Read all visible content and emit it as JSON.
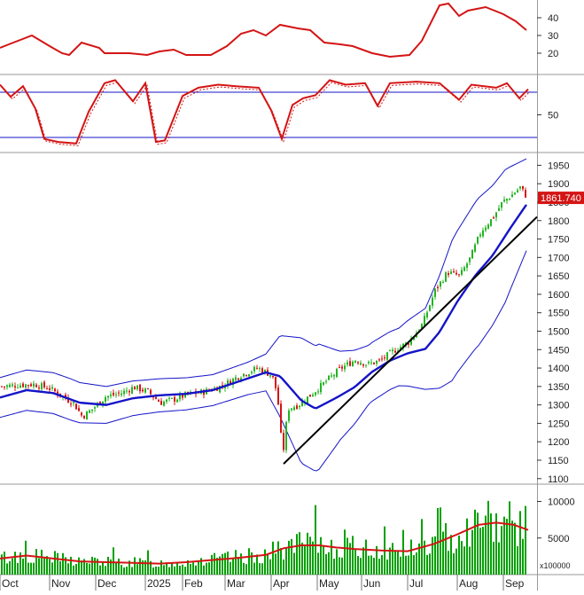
{
  "last_price_label": "1861.740",
  "volume_unit": "x100000",
  "colors": {
    "up": "#22b422",
    "down": "#d41414",
    "indicator": "#d41414",
    "ma": "#1414c8",
    "band": "#1414c8",
    "trend": "#000000",
    "volume_bar": "#00a000",
    "volume_ma": "#d41414",
    "price_tag_bg": "#d41414",
    "price_tag_text": "#ffffff"
  },
  "chart_data": [
    {
      "type": "line",
      "panel": "adx",
      "y_ticks": [
        20,
        30,
        40
      ],
      "ylim": [
        8,
        50
      ],
      "series": [
        {
          "values": [
            [
              0,
              23
            ],
            [
              10,
              25
            ],
            [
              36,
              30
            ],
            [
              56,
              24
            ],
            [
              70,
              20
            ],
            [
              78,
              19
            ],
            [
              92,
              26
            ],
            [
              112,
              23
            ],
            [
              118,
              20
            ],
            [
              146,
              20
            ],
            [
              166,
              19
            ],
            [
              180,
              21
            ],
            [
              196,
              22
            ],
            [
              210,
              19
            ],
            [
              238,
              19
            ],
            [
              256,
              24
            ],
            [
              272,
              31
            ],
            [
              286,
              33
            ],
            [
              300,
              30
            ],
            [
              316,
              36
            ],
            [
              336,
              34
            ],
            [
              350,
              33
            ],
            [
              366,
              26
            ],
            [
              384,
              25
            ],
            [
              398,
              24
            ],
            [
              420,
              20
            ],
            [
              440,
              18
            ],
            [
              462,
              19
            ],
            [
              476,
              27
            ],
            [
              496,
              47
            ],
            [
              506,
              48
            ],
            [
              518,
              41
            ],
            [
              528,
              44
            ],
            [
              548,
              46
            ],
            [
              568,
              42
            ],
            [
              582,
              38
            ],
            [
              594,
              33
            ]
          ]
        }
      ]
    },
    {
      "type": "line",
      "panel": "stochastic",
      "y_ticks": [
        50
      ],
      "ylim": [
        0,
        100
      ],
      "reference_lines": [
        20,
        80
      ],
      "series": [
        {
          "values": [
            [
              0,
              90
            ],
            [
              12,
              74
            ],
            [
              26,
              88
            ],
            [
              40,
              58
            ],
            [
              50,
              18
            ],
            [
              66,
              14
            ],
            [
              86,
              12
            ],
            [
              100,
              54
            ],
            [
              118,
              92
            ],
            [
              130,
              96
            ],
            [
              150,
              68
            ],
            [
              164,
              92
            ],
            [
              176,
              14
            ],
            [
              186,
              16
            ],
            [
              206,
              75
            ],
            [
              224,
              86
            ],
            [
              246,
              90
            ],
            [
              266,
              88
            ],
            [
              292,
              86
            ],
            [
              306,
              56
            ],
            [
              318,
              18
            ],
            [
              330,
              63
            ],
            [
              342,
              72
            ],
            [
              356,
              76
            ],
            [
              372,
              96
            ],
            [
              390,
              90
            ],
            [
              412,
              92
            ],
            [
              426,
              62
            ],
            [
              440,
              92
            ],
            [
              470,
              94
            ],
            [
              496,
              92
            ],
            [
              518,
              70
            ],
            [
              532,
              90
            ],
            [
              560,
              86
            ],
            [
              572,
              92
            ],
            [
              586,
              72
            ],
            [
              596,
              84
            ]
          ]
        }
      ]
    },
    {
      "type": "candlestick",
      "panel": "price",
      "x_labels": [
        "Oct",
        "Nov",
        "Dec",
        "2025",
        "Feb",
        "Mar",
        "Apr",
        "May",
        "Jun",
        "Jul",
        "Aug",
        "Sep"
      ],
      "y_ticks": [
        1100,
        1150,
        1200,
        1250,
        1300,
        1350,
        1400,
        1450,
        1500,
        1550,
        1600,
        1650,
        1700,
        1750,
        1800,
        1850,
        1900,
        1950
      ],
      "ylim": [
        1085,
        1975
      ],
      "last_price": 1861.74,
      "close_path": [
        [
          0,
          1350
        ],
        [
          20,
          1354
        ],
        [
          38,
          1356
        ],
        [
          56,
          1344
        ],
        [
          70,
          1322
        ],
        [
          82,
          1305
        ],
        [
          92,
          1268
        ],
        [
          104,
          1290
        ],
        [
          118,
          1322
        ],
        [
          136,
          1332
        ],
        [
          150,
          1348
        ],
        [
          166,
          1336
        ],
        [
          180,
          1306
        ],
        [
          194,
          1314
        ],
        [
          210,
          1328
        ],
        [
          230,
          1336
        ],
        [
          250,
          1352
        ],
        [
          270,
          1380
        ],
        [
          290,
          1400
        ],
        [
          306,
          1380
        ],
        [
          312,
          1330
        ],
        [
          318,
          1160
        ],
        [
          324,
          1290
        ],
        [
          336,
          1300
        ],
        [
          350,
          1328
        ],
        [
          366,
          1362
        ],
        [
          384,
          1400
        ],
        [
          400,
          1422
        ],
        [
          414,
          1410
        ],
        [
          428,
          1420
        ],
        [
          444,
          1448
        ],
        [
          460,
          1470
        ],
        [
          476,
          1520
        ],
        [
          490,
          1610
        ],
        [
          504,
          1660
        ],
        [
          518,
          1650
        ],
        [
          530,
          1700
        ],
        [
          542,
          1772
        ],
        [
          556,
          1810
        ],
        [
          566,
          1850
        ],
        [
          576,
          1868
        ],
        [
          586,
          1890
        ],
        [
          594,
          1862
        ]
      ],
      "ma_path": [
        [
          0,
          1320
        ],
        [
          30,
          1340
        ],
        [
          60,
          1332
        ],
        [
          90,
          1306
        ],
        [
          120,
          1300
        ],
        [
          150,
          1318
        ],
        [
          180,
          1326
        ],
        [
          210,
          1330
        ],
        [
          240,
          1340
        ],
        [
          270,
          1364
        ],
        [
          300,
          1388
        ],
        [
          316,
          1378
        ],
        [
          340,
          1312
        ],
        [
          356,
          1290
        ],
        [
          380,
          1320
        ],
        [
          400,
          1348
        ],
        [
          420,
          1390
        ],
        [
          440,
          1420
        ],
        [
          460,
          1440
        ],
        [
          480,
          1452
        ],
        [
          496,
          1498
        ],
        [
          516,
          1580
        ],
        [
          536,
          1650
        ],
        [
          556,
          1706
        ],
        [
          576,
          1780
        ],
        [
          596,
          1850
        ]
      ],
      "band_width_path": [
        [
          0,
          54
        ],
        [
          80,
          56
        ],
        [
          120,
          50
        ],
        [
          160,
          46
        ],
        [
          200,
          44
        ],
        [
          240,
          42
        ],
        [
          280,
          44
        ],
        [
          300,
          50
        ],
        [
          316,
          110
        ],
        [
          340,
          170
        ],
        [
          360,
          170
        ],
        [
          384,
          120
        ],
        [
          416,
          80
        ],
        [
          450,
          78
        ],
        [
          480,
          110
        ],
        [
          510,
          190
        ],
        [
          540,
          200
        ],
        [
          570,
          180
        ],
        [
          596,
          120
        ]
      ],
      "trendline": [
        [
          1140,
          1810
        ]
      ],
      "trendline_x": [
        320,
        606
      ]
    },
    {
      "type": "bar",
      "panel": "volume",
      "y_ticks": [
        5000,
        10000
      ],
      "ylim": [
        0,
        12000
      ],
      "ma_path": [
        [
          0,
          2200
        ],
        [
          30,
          2600
        ],
        [
          60,
          2200
        ],
        [
          90,
          1800
        ],
        [
          120,
          1700
        ],
        [
          150,
          1600
        ],
        [
          180,
          1500
        ],
        [
          210,
          1700
        ],
        [
          240,
          2000
        ],
        [
          270,
          2300
        ],
        [
          300,
          2700
        ],
        [
          320,
          3600
        ],
        [
          340,
          4000
        ],
        [
          360,
          4000
        ],
        [
          380,
          3700
        ],
        [
          400,
          3500
        ],
        [
          430,
          3300
        ],
        [
          460,
          3200
        ],
        [
          490,
          4200
        ],
        [
          516,
          5500
        ],
        [
          540,
          6800
        ],
        [
          560,
          7100
        ],
        [
          580,
          6800
        ],
        [
          596,
          6100
        ]
      ]
    }
  ]
}
